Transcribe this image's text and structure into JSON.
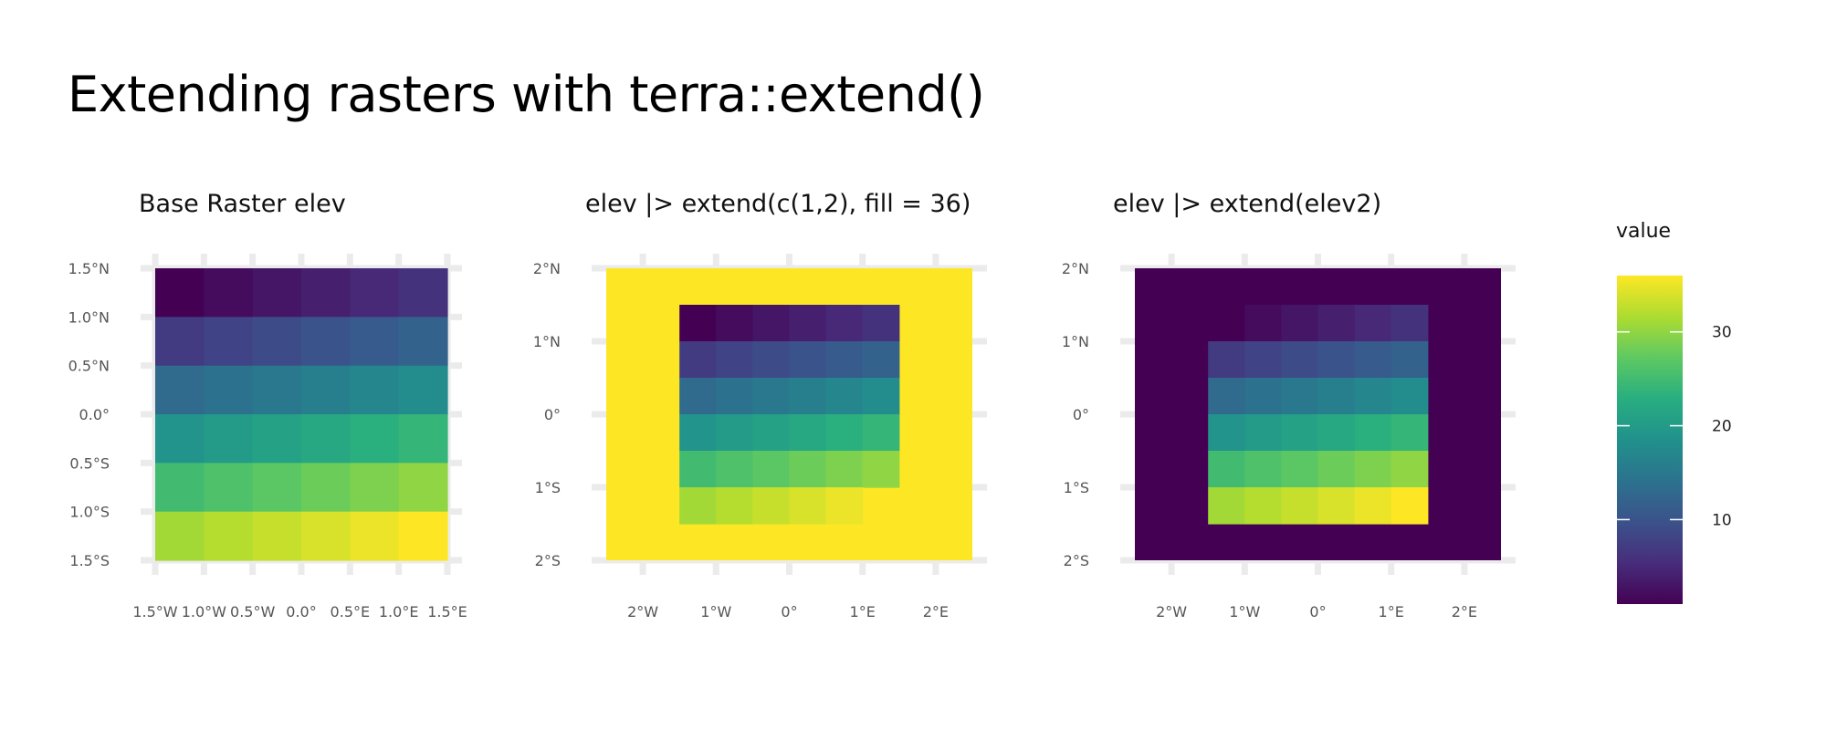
{
  "title": "Extending rasters with terra::extend()",
  "chart_data": [
    {
      "type": "heatmap",
      "title": "Base Raster elev",
      "xlim": [
        -1.5,
        1.5
      ],
      "ylim": [
        -1.5,
        1.5
      ],
      "cell_size": 0.5,
      "x_ticks": [
        {
          "value": -1.5,
          "label": "1.5°W"
        },
        {
          "value": -1.0,
          "label": "1.0°W"
        },
        {
          "value": -0.5,
          "label": "0.5°W"
        },
        {
          "value": 0.0,
          "label": "0.0°"
        },
        {
          "value": 0.5,
          "label": "0.5°E"
        },
        {
          "value": 1.0,
          "label": "1.0°E"
        },
        {
          "value": 1.5,
          "label": "1.5°E"
        }
      ],
      "y_ticks": [
        {
          "value": 1.5,
          "label": "1.5°N"
        },
        {
          "value": 1.0,
          "label": "1.0°N"
        },
        {
          "value": 0.5,
          "label": "0.5°N"
        },
        {
          "value": 0.0,
          "label": "0.0°"
        },
        {
          "value": -0.5,
          "label": "0.5°S"
        },
        {
          "value": -1.0,
          "label": "1.0°S"
        },
        {
          "value": -1.5,
          "label": "1.5°S"
        }
      ],
      "values": [
        [
          1,
          2,
          3,
          4,
          5,
          6
        ],
        [
          7,
          8,
          9,
          10,
          11,
          12
        ],
        [
          13,
          14,
          15,
          16,
          17,
          18
        ],
        [
          19,
          20,
          21,
          22,
          23,
          24
        ],
        [
          25,
          26,
          27,
          28,
          29,
          30
        ],
        [
          31,
          32,
          33,
          34,
          35,
          36
        ]
      ]
    },
    {
      "type": "heatmap",
      "title": "elev |> extend(c(1,2), fill = 36)",
      "xlim": [
        -2.5,
        2.5
      ],
      "ylim": [
        -2,
        2
      ],
      "x_ticks": [
        {
          "value": -2,
          "label": "2°W"
        },
        {
          "value": -1,
          "label": "1°W"
        },
        {
          "value": 0,
          "label": "0°"
        },
        {
          "value": 1,
          "label": "1°E"
        },
        {
          "value": 2,
          "label": "2°E"
        }
      ],
      "y_ticks": [
        {
          "value": 2,
          "label": "2°N"
        },
        {
          "value": 1,
          "label": "1°N"
        },
        {
          "value": 0,
          "label": "0°"
        },
        {
          "value": -1,
          "label": "1°S"
        },
        {
          "value": -2,
          "label": "2°S"
        }
      ],
      "fill_value": 36,
      "fill_extent": [
        -2.5,
        2.5,
        -2,
        2
      ],
      "inner_cell_width": 0.5,
      "inner_cell_height": 0.5,
      "inner_rows": [
        {
          "y_top": 1.5,
          "x_start": -1.5,
          "values": [
            1,
            2,
            3,
            4,
            5,
            6
          ]
        },
        {
          "y_top": 1.0,
          "x_start": -1.5,
          "values": [
            7,
            8,
            9,
            10,
            11,
            12
          ]
        },
        {
          "y_top": 0.5,
          "x_start": -1.5,
          "values": [
            13,
            14,
            15,
            16,
            17,
            18
          ]
        },
        {
          "y_top": 0.0,
          "x_start": -1.5,
          "values": [
            19,
            20,
            21,
            22,
            23,
            24
          ]
        },
        {
          "y_top": -0.5,
          "x_start": -1.5,
          "values": [
            25,
            26,
            27,
            28,
            29,
            30
          ]
        },
        {
          "y_top": -1.0,
          "x_start": -1.5,
          "values": [
            31,
            32,
            33,
            34,
            35
          ]
        }
      ]
    },
    {
      "type": "heatmap",
      "title": "elev |> extend(elev2)",
      "xlim": [
        -2.5,
        2.5
      ],
      "ylim": [
        -2,
        2
      ],
      "x_ticks": [
        {
          "value": -2,
          "label": "2°W"
        },
        {
          "value": -1,
          "label": "1°W"
        },
        {
          "value": 0,
          "label": "0°"
        },
        {
          "value": 1,
          "label": "1°E"
        },
        {
          "value": 2,
          "label": "2°E"
        }
      ],
      "y_ticks": [
        {
          "value": 2,
          "label": "2°N"
        },
        {
          "value": 1,
          "label": "1°N"
        },
        {
          "value": 0,
          "label": "0°"
        },
        {
          "value": -1,
          "label": "1°S"
        },
        {
          "value": -2,
          "label": "2°S"
        }
      ],
      "fill_value": 1,
      "fill_extent": [
        -2.5,
        2.5,
        -2,
        2
      ],
      "inner_cell_width": 0.5,
      "inner_cell_height": 0.5,
      "inner_rows": [
        {
          "y_top": 1.5,
          "x_start": -1.0,
          "values": [
            2,
            3,
            4,
            5,
            6
          ]
        },
        {
          "y_top": 1.0,
          "x_start": -1.5,
          "values": [
            7,
            8,
            9,
            10,
            11,
            12
          ]
        },
        {
          "y_top": 0.5,
          "x_start": -1.5,
          "values": [
            13,
            14,
            15,
            16,
            17,
            18
          ]
        },
        {
          "y_top": 0.0,
          "x_start": -1.5,
          "values": [
            19,
            20,
            21,
            22,
            23,
            24
          ]
        },
        {
          "y_top": -0.5,
          "x_start": -1.5,
          "values": [
            25,
            26,
            27,
            28,
            29,
            30
          ]
        },
        {
          "y_top": -1.0,
          "x_start": -1.5,
          "values": [
            31,
            32,
            33,
            34,
            35,
            36
          ]
        }
      ]
    }
  ],
  "legend": {
    "title": "value",
    "range": [
      1,
      36
    ],
    "ticks": [
      10,
      20,
      30
    ],
    "tick_labels": [
      "10",
      "20",
      "30"
    ],
    "palette": "viridis",
    "stops": [
      "#440154",
      "#472d7b",
      "#3b528b",
      "#2c728e",
      "#21918c",
      "#28ae80",
      "#5ec962",
      "#addc30",
      "#fde725"
    ]
  },
  "colors": {
    "background": "#ffffff",
    "grid": "#ebebeb"
  }
}
